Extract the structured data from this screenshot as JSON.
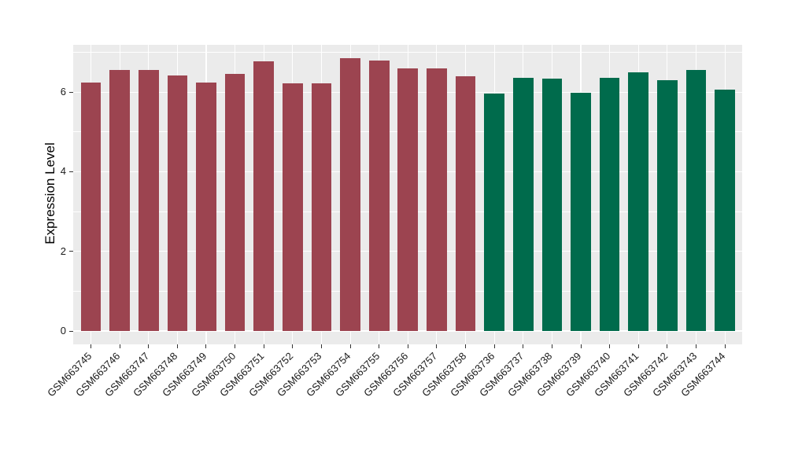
{
  "chart_data": {
    "type": "bar",
    "ylabel": "Expression Level",
    "categories": [
      "GSM663745",
      "GSM663746",
      "GSM663747",
      "GSM663748",
      "GSM663749",
      "GSM663750",
      "GSM663751",
      "GSM663752",
      "GSM663753",
      "GSM663754",
      "GSM663755",
      "GSM663756",
      "GSM663757",
      "GSM663758",
      "GSM663736",
      "GSM663737",
      "GSM663738",
      "GSM663739",
      "GSM663740",
      "GSM663741",
      "GSM663742",
      "GSM663743",
      "GSM663744"
    ],
    "values": [
      6.24,
      6.55,
      6.56,
      6.42,
      6.23,
      6.46,
      6.78,
      6.22,
      6.22,
      6.85,
      6.79,
      6.59,
      6.6,
      6.4,
      5.97,
      6.36,
      6.34,
      5.98,
      6.36,
      6.5,
      6.3,
      6.55,
      6.07
    ],
    "bar_colors": [
      "#9C4450",
      "#9C4450",
      "#9C4450",
      "#9C4450",
      "#9C4450",
      "#9C4450",
      "#9C4450",
      "#9C4450",
      "#9C4450",
      "#9C4450",
      "#9C4450",
      "#9C4450",
      "#9C4450",
      "#9C4450",
      "#006B4C",
      "#006B4C",
      "#006B4C",
      "#006B4C",
      "#006B4C",
      "#006B4C",
      "#006B4C",
      "#006B4C",
      "#006B4C"
    ],
    "palette": {
      "maroon_group": "#9C4450",
      "green_group": "#006B4C"
    },
    "yticks": [
      0,
      2,
      4,
      6
    ],
    "ylim": [
      -0.34,
      7.19
    ],
    "grid": true,
    "legend": "none",
    "panel_bg": "#EBEBEB",
    "grid_color": "#FFFFFF",
    "tick_color": "#333333",
    "text_color": "#1A1A1A"
  }
}
